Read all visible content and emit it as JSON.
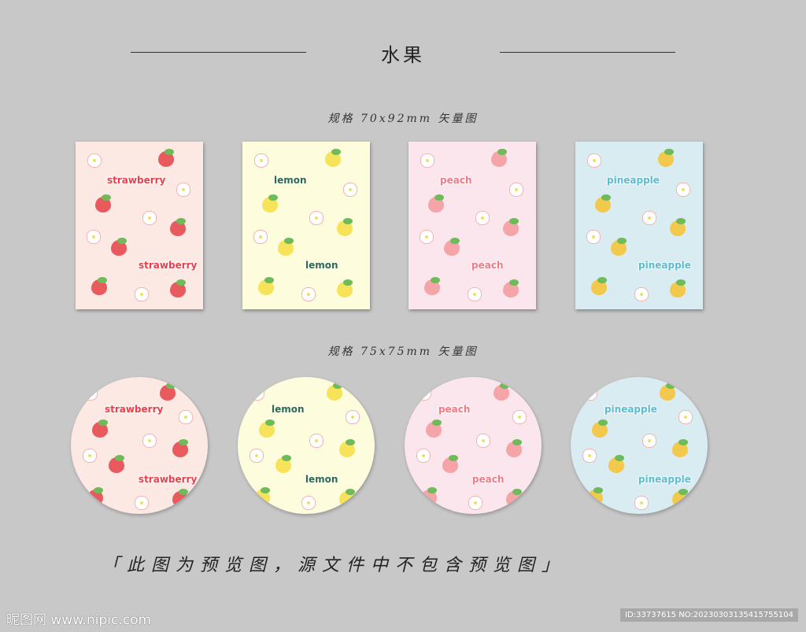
{
  "title": "水果",
  "spec_rect": "规格 70x92mm 矢量图",
  "spec_round": "规格 75x75mm 矢量图",
  "designs": [
    {
      "label": "strawberry",
      "bg": "#fde9e4",
      "text_color": "#e8404a",
      "fruit_color": "#e85a5e",
      "fruit": "strawberry-icon"
    },
    {
      "label": "lemon",
      "bg": "#fdfcdc",
      "text_color": "#2e6b4c",
      "fruit_color": "#f7e35a",
      "fruit": "lemon-icon"
    },
    {
      "label": "peach",
      "bg": "#fbe6ee",
      "text_color": "#f07a86",
      "fruit_color": "#f5a5a8",
      "fruit": "peach-icon"
    },
    {
      "label": "pineapple",
      "bg": "#d9ecf1",
      "text_color": "#5bbccf",
      "fruit_color": "#f2c94c",
      "fruit": "pineapple-icon"
    }
  ],
  "note": "「此图为预览图，源文件中不包含预览图」",
  "watermark": "昵图网 www.nipic.com",
  "image_id": "ID:33737615 NO:20230303135415755104"
}
